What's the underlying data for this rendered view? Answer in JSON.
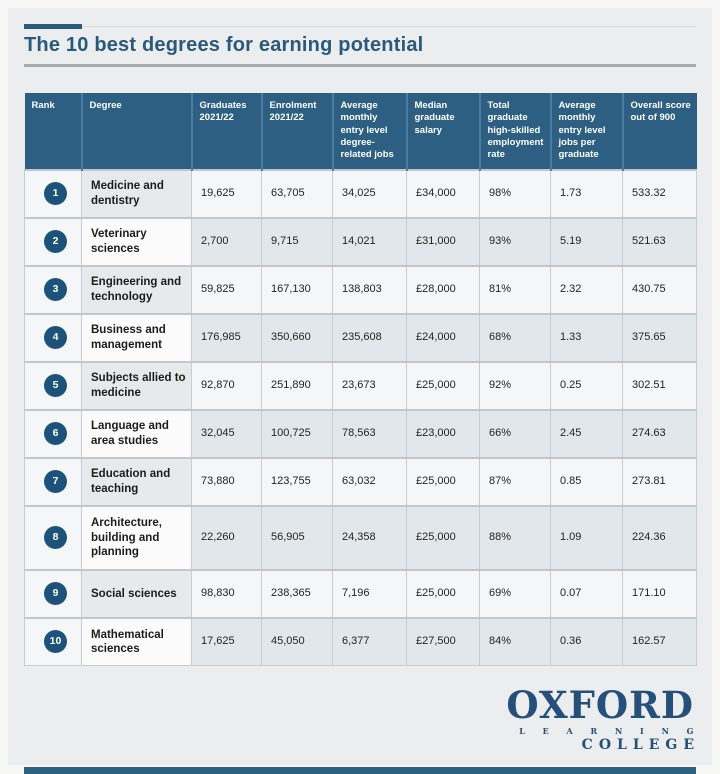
{
  "title": "The 10 best degrees for earning potential",
  "chart_data": {
    "type": "table",
    "title": "The 10 best degrees for earning potential",
    "columns": [
      "Rank",
      "Degree",
      "Graduates 2021/22",
      "Enrolment 2021/22",
      "Average monthly entry level degree-related jobs",
      "Median graduate salary",
      "Total graduate high-skilled employment rate",
      "Average monthly entry level jobs per graduate",
      "Overall score out of 900"
    ],
    "rows": [
      {
        "rank": "1",
        "degree": "Medicine and dentistry",
        "graduates": "19,625",
        "enrolment": "63,705",
        "avg_monthly_entry_level_jobs": "34,025",
        "median_salary": "£34,000",
        "employment_rate": "98%",
        "jobs_per_graduate": "1.73",
        "overall_score": "533.32"
      },
      {
        "rank": "2",
        "degree": "Veterinary sciences",
        "graduates": "2,700",
        "enrolment": "9,715",
        "avg_monthly_entry_level_jobs": "14,021",
        "median_salary": "£31,000",
        "employment_rate": "93%",
        "jobs_per_graduate": "5.19",
        "overall_score": "521.63"
      },
      {
        "rank": "3",
        "degree": "Engineering and technology",
        "graduates": "59,825",
        "enrolment": "167,130",
        "avg_monthly_entry_level_jobs": "138,803",
        "median_salary": "£28,000",
        "employment_rate": "81%",
        "jobs_per_graduate": "2.32",
        "overall_score": "430.75"
      },
      {
        "rank": "4",
        "degree": "Business and management",
        "graduates": "176,985",
        "enrolment": "350,660",
        "avg_monthly_entry_level_jobs": "235,608",
        "median_salary": "£24,000",
        "employment_rate": "68%",
        "jobs_per_graduate": "1.33",
        "overall_score": "375.65"
      },
      {
        "rank": "5",
        "degree": "Subjects allied to medicine",
        "graduates": "92,870",
        "enrolment": "251,890",
        "avg_monthly_entry_level_jobs": "23,673",
        "median_salary": "£25,000",
        "employment_rate": "92%",
        "jobs_per_graduate": "0.25",
        "overall_score": "302.51"
      },
      {
        "rank": "6",
        "degree": "Language and area studies",
        "graduates": "32,045",
        "enrolment": "100,725",
        "avg_monthly_entry_level_jobs": "78,563",
        "median_salary": "£23,000",
        "employment_rate": "66%",
        "jobs_per_graduate": "2.45",
        "overall_score": "274.63"
      },
      {
        "rank": "7",
        "degree": "Education and teaching",
        "graduates": "73,880",
        "enrolment": "123,755",
        "avg_monthly_entry_level_jobs": "63,032",
        "median_salary": "£25,000",
        "employment_rate": "87%",
        "jobs_per_graduate": "0.85",
        "overall_score": "273.81"
      },
      {
        "rank": "8",
        "degree": "Architecture, building and planning",
        "graduates": "22,260",
        "enrolment": "56,905",
        "avg_monthly_entry_level_jobs": "24,358",
        "median_salary": "£25,000",
        "employment_rate": "88%",
        "jobs_per_graduate": "1.09",
        "overall_score": "224.36"
      },
      {
        "rank": "9",
        "degree": "Social sciences",
        "graduates": "98,830",
        "enrolment": "238,365",
        "avg_monthly_entry_level_jobs": "7,196",
        "median_salary": "£25,000",
        "employment_rate": "69%",
        "jobs_per_graduate": "0.07",
        "overall_score": "171.10"
      },
      {
        "rank": "10",
        "degree": "Mathematical sciences",
        "graduates": "17,625",
        "enrolment": "45,050",
        "avg_monthly_entry_level_jobs": "6,377",
        "median_salary": "£27,500",
        "employment_rate": "84%",
        "jobs_per_graduate": "0.36",
        "overall_score": "162.57"
      }
    ],
    "layout": {
      "grid": "checkerboard-row-shading",
      "legend": "none"
    }
  },
  "logo": {
    "name": "OXFORD",
    "line2": "L E A R N I N G",
    "line3": "COLLEGE"
  },
  "colors": {
    "page_background": "#ecedee",
    "header_background": "#2c5f82",
    "header_divider": "#4b7ba0",
    "title_text": "#295a7c",
    "rank_badge": "#1d537a",
    "row_shade_dark": "#e2e7ec",
    "row_shade_light": "#f4f6f7",
    "accent_bar": "#2e617f",
    "logo_text": "#24507a"
  }
}
